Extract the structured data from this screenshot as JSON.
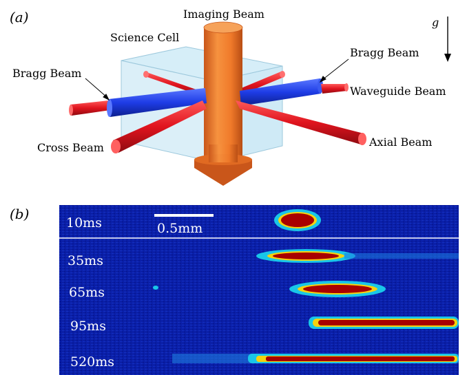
{
  "panel_a": {
    "panel_label": "(a)",
    "labels": {
      "imaging_beam": "Imaging Beam",
      "science_cell": "Science Cell",
      "bragg_left": "Bragg Beam",
      "bragg_right": "Bragg Beam",
      "waveguide": "Waveguide Beam",
      "cross": "Cross Beam",
      "axial": "Axial Beam",
      "gravity": "g"
    },
    "colors": {
      "red_beam": "#e0141e",
      "blue_beam": "#1e3ce6",
      "imaging_beam": "#f07a2a",
      "cell": "#bfe3f3"
    }
  },
  "panel_b": {
    "panel_label": "(b)",
    "scale_bar": "0.5mm",
    "rows": [
      {
        "time": "10ms"
      },
      {
        "time": "35ms"
      },
      {
        "time": "65ms"
      },
      {
        "time": "95ms"
      },
      {
        "time": "520ms"
      }
    ],
    "colors": {
      "background": "#0a1fa8",
      "cloud_outer": "#19c6e8",
      "cloud_mid": "#f5d20f",
      "cloud_core": "#a80000"
    }
  }
}
